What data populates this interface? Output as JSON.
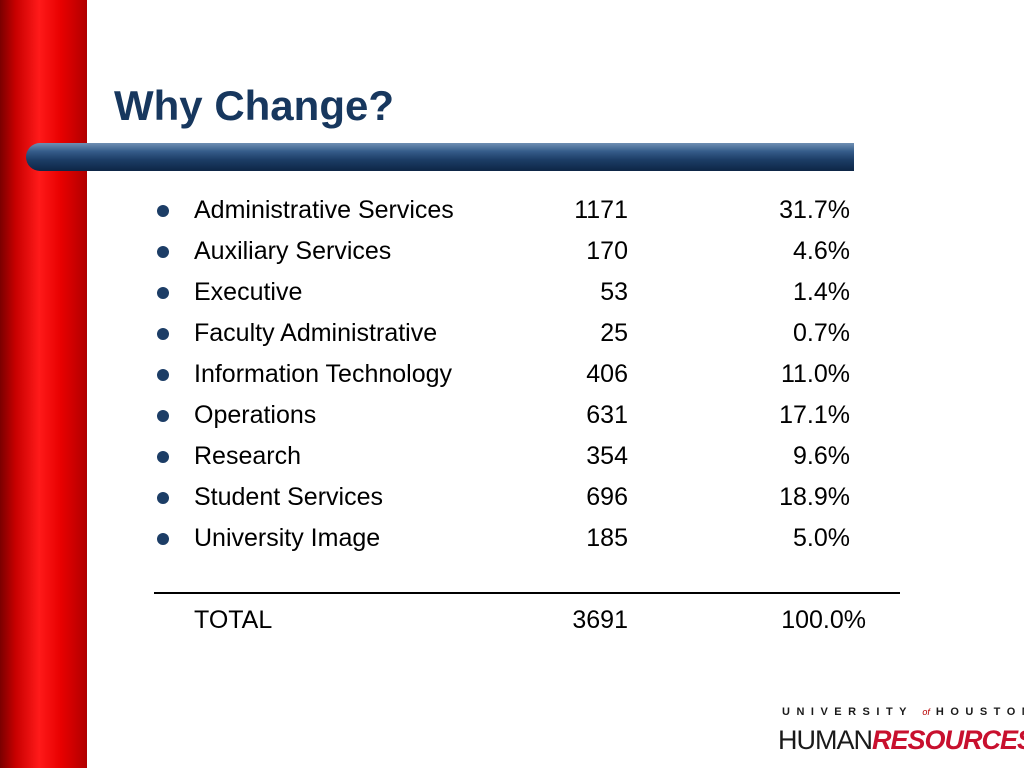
{
  "slide": {
    "title": "Why Change?"
  },
  "items": [
    {
      "label": "Administrative Services",
      "count": "1171",
      "percent": "31.7%"
    },
    {
      "label": "Auxiliary Services",
      "count": "170",
      "percent": "4.6%"
    },
    {
      "label": "Executive",
      "count": "53",
      "percent": "1.4%"
    },
    {
      "label": "Faculty Administrative",
      "count": "25",
      "percent": "0.7%"
    },
    {
      "label": "Information Technology",
      "count": "406",
      "percent": "11.0%"
    },
    {
      "label": "Operations",
      "count": "631",
      "percent": "17.1%"
    },
    {
      "label": "Research",
      "count": "354",
      "percent": "9.6%"
    },
    {
      "label": "Student Services",
      "count": "696",
      "percent": "18.9%"
    },
    {
      "label": "University Image",
      "count": "185",
      "percent": "5.0%"
    }
  ],
  "total": {
    "label": "TOTAL",
    "count": "3691",
    "percent": "100.0%"
  },
  "logo": {
    "top_left": "UNIVERSITY",
    "top_of": "of",
    "top_right": "HOUSTON",
    "human": "HUMAN",
    "resources": "RESOURCES"
  },
  "colors": {
    "title": "#17375e",
    "sidebar": "#e80000",
    "bullet": "#1c3d66",
    "logo_accent": "#c8102e"
  }
}
